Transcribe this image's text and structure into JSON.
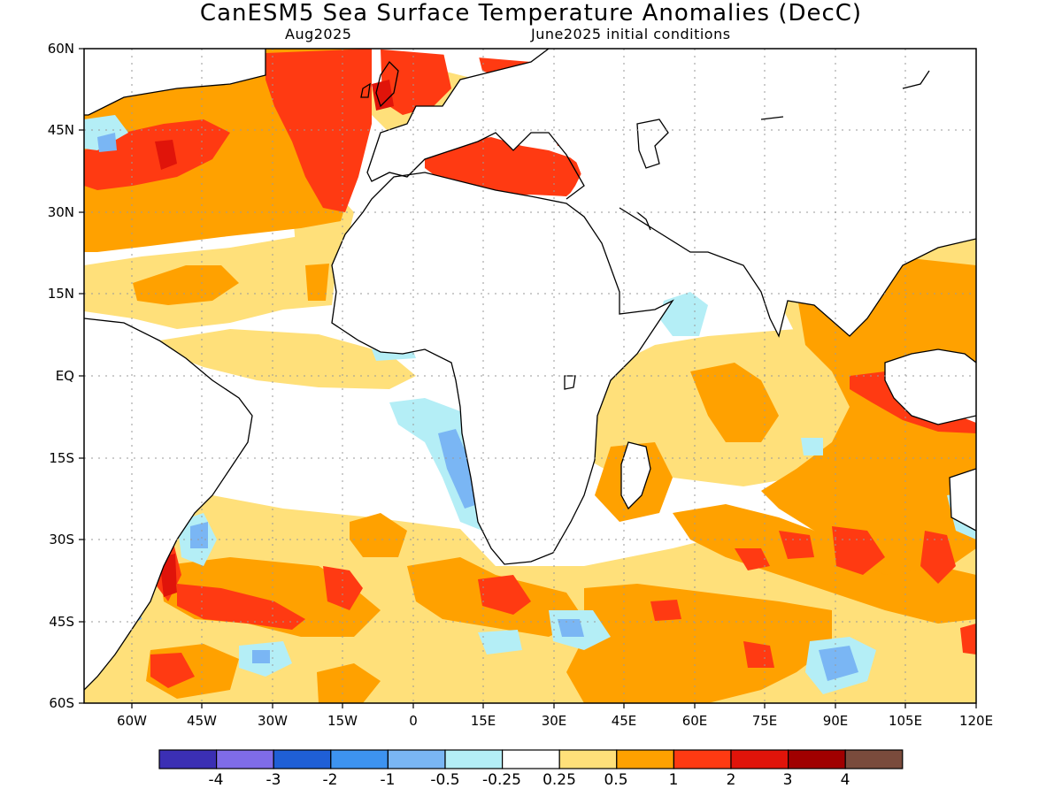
{
  "header": {
    "title": "CanESM5 Sea Surface Temperature Anomalies (DecC)",
    "valid_month": "Aug2025",
    "init": "June2025 initial conditions"
  },
  "map": {
    "projection": "equirectangular",
    "lon_range": [
      -70,
      120
    ],
    "lat_range": [
      -60,
      60
    ],
    "lat_labels": [
      "60N",
      "45N",
      "30N",
      "15N",
      "EQ",
      "15S",
      "30S",
      "45S",
      "60S"
    ],
    "lon_labels": [
      "60W",
      "45W",
      "30W",
      "15W",
      "0",
      "15E",
      "30E",
      "45E",
      "60E",
      "75E",
      "90E",
      "105E",
      "120E"
    ],
    "gridlines": "dotted every 15 degrees"
  },
  "colorbar": {
    "labels": [
      "-4",
      "-3",
      "-2",
      "-1",
      "-0.5",
      "-0.25",
      "0.25",
      "0.5",
      "1",
      "2",
      "3",
      "4"
    ],
    "colors": [
      "#3b2fb4",
      "#7f6ce8",
      "#1f5fd6",
      "#3d93f0",
      "#7ab6f4",
      "#b4eef6",
      "#ffffff",
      "#ffe07a",
      "#ffa100",
      "#ff3a12",
      "#e0140a",
      "#a00000",
      "#7a4b3c"
    ]
  }
}
